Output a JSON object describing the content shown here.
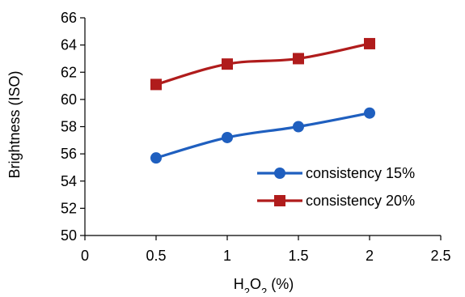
{
  "chart_data": {
    "type": "line",
    "title": "",
    "xlabel": {
      "main": "H",
      "sub": "2",
      "mid": "O",
      "sub2": "2",
      "tail": " (%)"
    },
    "ylabel": "Brightness (ISO)",
    "xlim": [
      0,
      2.5
    ],
    "ylim": [
      50,
      66
    ],
    "xticks": [
      0,
      0.5,
      1,
      1.5,
      2,
      2.5
    ],
    "yticks": [
      50,
      52,
      54,
      56,
      58,
      60,
      62,
      64,
      66
    ],
    "xtick_labels": [
      "0",
      "0.5",
      "1",
      "1.5",
      "2",
      "2.5"
    ],
    "ytick_labels": [
      "50",
      "52",
      "54",
      "56",
      "58",
      "60",
      "62",
      "64",
      "66"
    ],
    "x": [
      0.5,
      1,
      1.5,
      2
    ],
    "series": [
      {
        "name": "consistency 15%",
        "values": [
          55.7,
          57.2,
          58.0,
          59.0
        ],
        "color": "#1f5fbf",
        "marker": "circle"
      },
      {
        "name": "consistency 20%",
        "values": [
          61.1,
          62.6,
          63.0,
          64.1
        ],
        "color": "#b01c1c",
        "marker": "square"
      }
    ],
    "grid": false,
    "legend_position": "bottom-right"
  }
}
